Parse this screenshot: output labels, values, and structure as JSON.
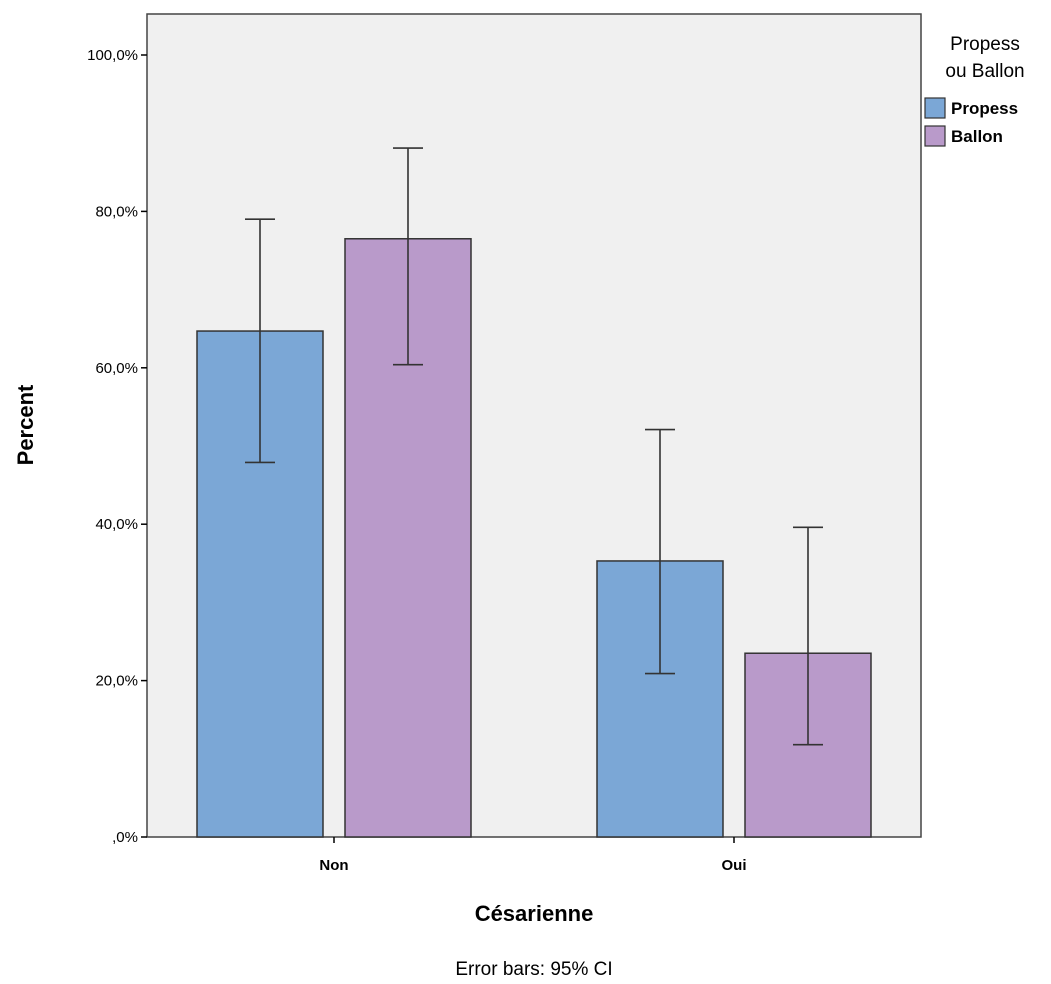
{
  "chart_data": {
    "type": "bar",
    "categories": [
      "Non",
      "Oui"
    ],
    "series": [
      {
        "name": "Propess",
        "color": "#7BA7D6",
        "values": [
          64.7,
          35.3
        ],
        "ci_low": [
          47.9,
          20.9
        ],
        "ci_high": [
          79.0,
          52.1
        ]
      },
      {
        "name": "Ballon",
        "color": "#B99ACA",
        "values": [
          76.5,
          23.5
        ],
        "ci_low": [
          60.4,
          11.8
        ],
        "ci_high": [
          88.1,
          39.6
        ]
      }
    ],
    "xlabel": "Césarienne",
    "ylabel": "Percent",
    "ylim": [
      0,
      100
    ],
    "yticks": [
      0,
      20,
      40,
      60,
      80,
      100
    ],
    "ytick_labels": [
      ",0%",
      "20,0%",
      "40,0%",
      "60,0%",
      "80,0%",
      "100,0%"
    ],
    "legend_title_lines": [
      "Propess",
      "ou Ballon"
    ],
    "legend_position": "right",
    "footnote": "Error bars: 95% CI",
    "grid": false,
    "plot_background": "#F0F0F0"
  }
}
